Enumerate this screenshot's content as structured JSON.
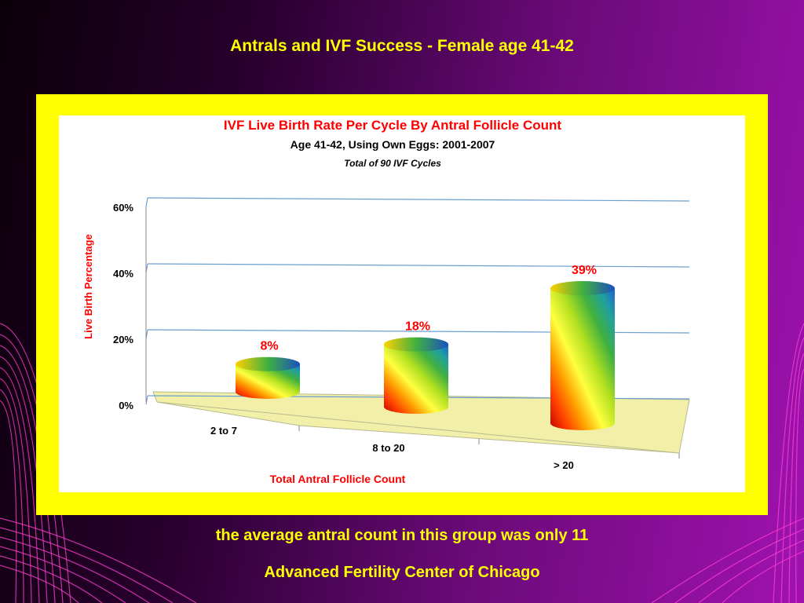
{
  "slide": {
    "title": "Antrals and IVF Success - Female age 41-42",
    "note": "the average antral count in this group was only 11",
    "source": "Advanced Fertility Center of Chicago"
  },
  "colors": {
    "frame": "#ffff00",
    "text_yellow": "#ffff00",
    "chart_title": "#ff0000",
    "floor": "#f2f0a8",
    "gridline": "#6a9fd0"
  },
  "chart_data": {
    "type": "bar",
    "title": "IVF Live Birth Rate Per Cycle By Antral Follicle Count",
    "subtitle": "Age 41-42, Using Own Eggs: 2001-2007",
    "subtitle2": "Total of 90 IVF Cycles",
    "xlabel": "Total Antral Follicle Count",
    "ylabel": "Live Birth Percentage",
    "categories": [
      "2 to 7",
      "8 to 20",
      "> 20"
    ],
    "values": [
      8,
      18,
      39
    ],
    "data_labels": [
      "8%",
      "18%",
      "39%"
    ],
    "ylim": [
      0,
      60
    ],
    "yticks": [
      "0%",
      "20%",
      "40%",
      "60%"
    ],
    "grid": true,
    "style": "3d cylinder"
  }
}
